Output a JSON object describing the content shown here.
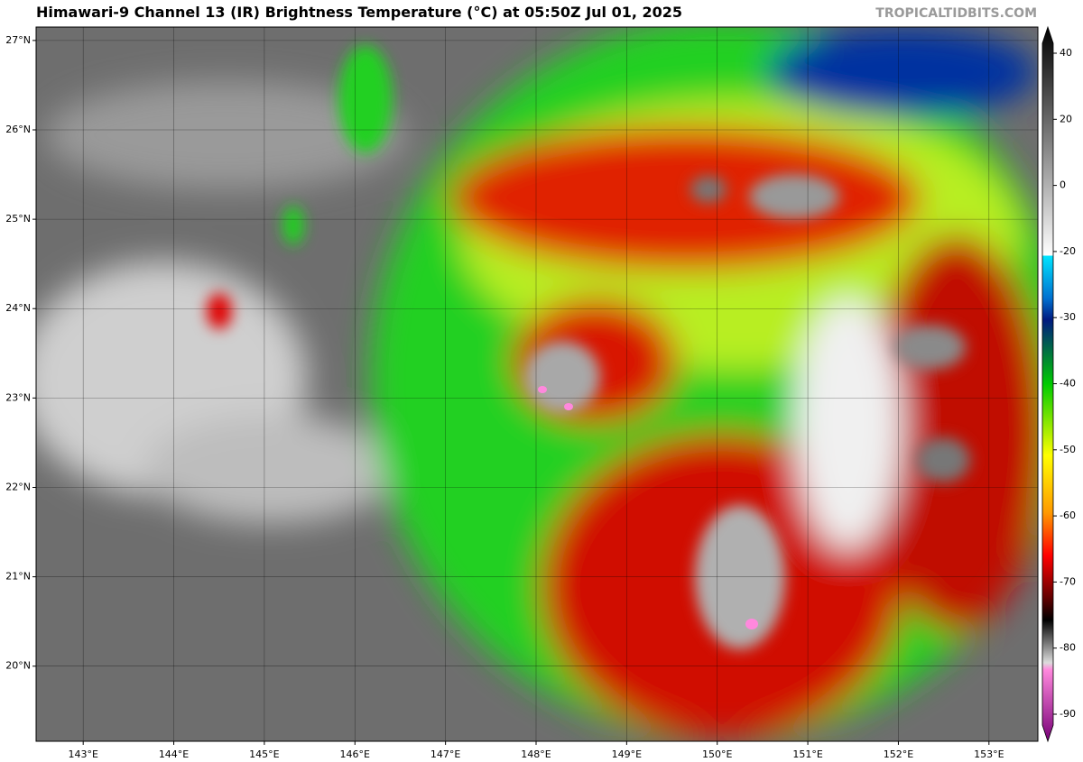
{
  "header": {
    "title": "Himawari-9 Channel 13 (IR) Brightness Temperature (°C) at 05:50Z Jul 01, 2025",
    "credit": "TROPICALTIDBITS.COM"
  },
  "map": {
    "xlim": [
      142.48,
      153.54
    ],
    "ylim": [
      19.16,
      27.15
    ],
    "lon_ticks": [
      {
        "value": 143,
        "label": "143°E"
      },
      {
        "value": 144,
        "label": "144°E"
      },
      {
        "value": 145,
        "label": "145°E"
      },
      {
        "value": 146,
        "label": "146°E"
      },
      {
        "value": 147,
        "label": "147°E"
      },
      {
        "value": 148,
        "label": "148°E"
      },
      {
        "value": 149,
        "label": "149°E"
      },
      {
        "value": 150,
        "label": "150°E"
      },
      {
        "value": 151,
        "label": "151°E"
      },
      {
        "value": 152,
        "label": "152°E"
      },
      {
        "value": 153,
        "label": "153°E"
      }
    ],
    "lat_ticks": [
      {
        "value": 20,
        "label": "20°N"
      },
      {
        "value": 21,
        "label": "21°N"
      },
      {
        "value": 22,
        "label": "22°N"
      },
      {
        "value": 23,
        "label": "23°N"
      },
      {
        "value": 24,
        "label": "24°N"
      },
      {
        "value": 25,
        "label": "25°N"
      },
      {
        "value": 26,
        "label": "26°N"
      },
      {
        "value": 27,
        "label": "27°N"
      }
    ]
  },
  "colorbar": {
    "ticks": [
      40,
      20,
      0,
      -20,
      -30,
      -40,
      -50,
      -60,
      -70,
      -80,
      -90
    ]
  }
}
